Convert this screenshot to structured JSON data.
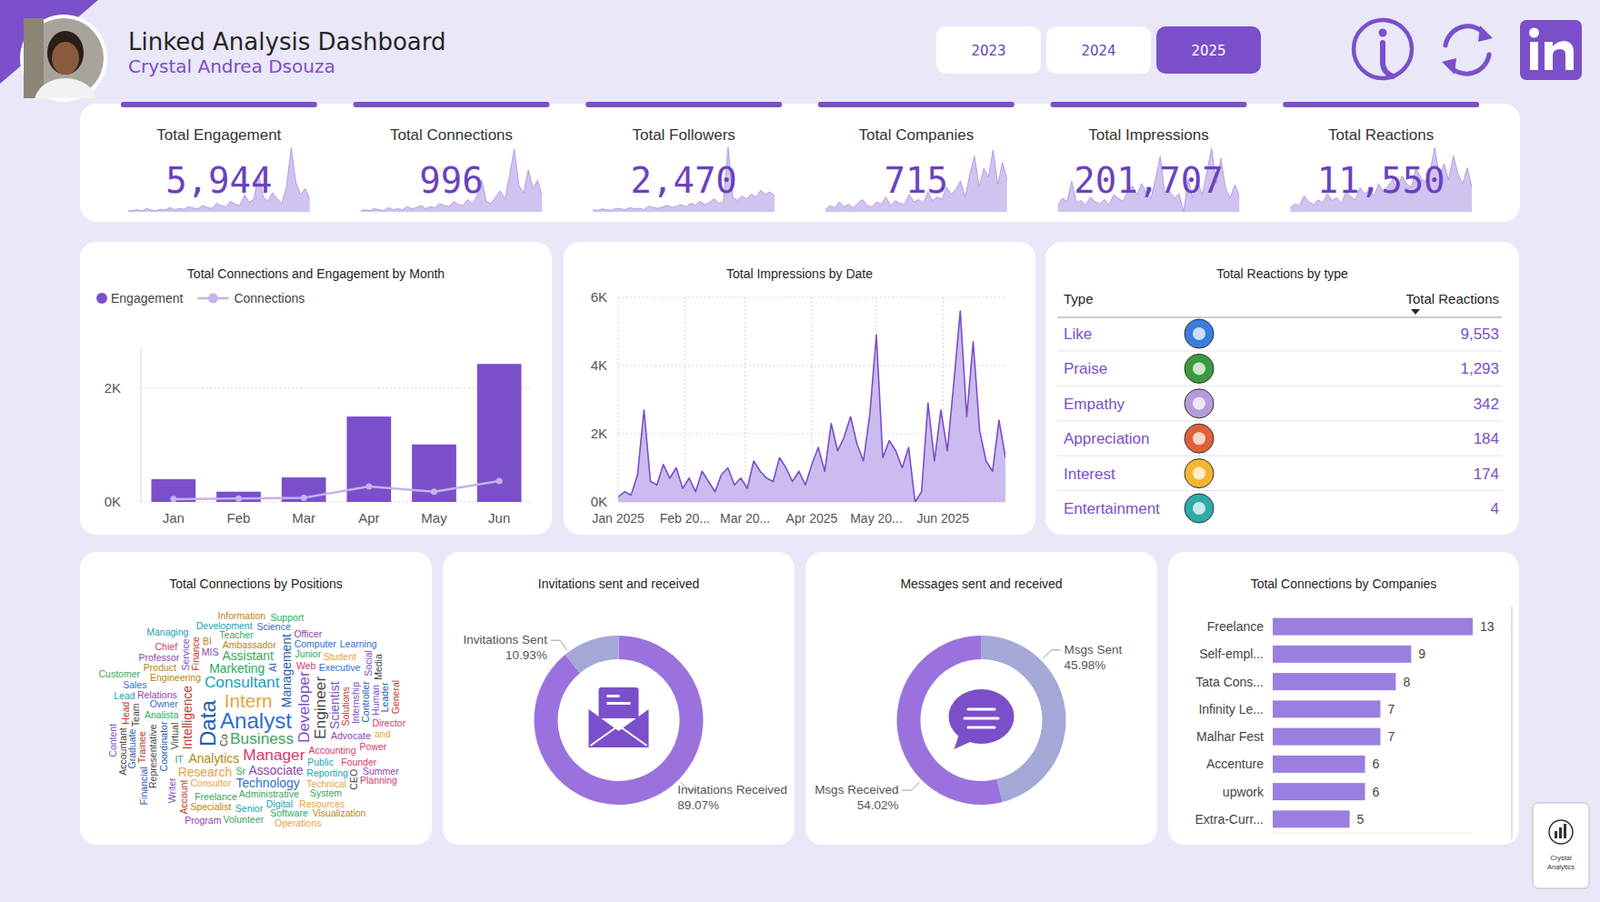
{
  "header": {
    "title": "Linked Analysis Dashboard",
    "subtitle": "Crystal Andrea Dsouza",
    "years": [
      {
        "label": "2023"
      },
      {
        "label": "2024"
      },
      {
        "label": "2025",
        "selected": true
      }
    ]
  },
  "kpis": [
    {
      "label": "Total Engagement",
      "value": "5,944",
      "sparkline": {
        "type": "area",
        "values": [
          2,
          3,
          5,
          2,
          8,
          4,
          3,
          6,
          4,
          10,
          5,
          8,
          6,
          12,
          9,
          7,
          15,
          10,
          8,
          20,
          14,
          12,
          25,
          18,
          15,
          40,
          22,
          30,
          90,
          35,
          25,
          45,
          30,
          20,
          60,
          150,
          70,
          40,
          55,
          30
        ],
        "ylim": [
          0,
          160
        ],
        "tick_labels": false,
        "color": "#C9B8EC"
      }
    },
    {
      "label": "Total Connections",
      "value": "996",
      "sparkline": {
        "type": "area",
        "values": [
          1,
          2,
          1,
          3,
          2,
          1,
          4,
          2,
          3,
          2,
          5,
          3,
          4,
          6,
          3,
          5,
          4,
          8,
          6,
          5,
          10,
          7,
          6,
          12,
          8,
          15,
          30,
          10,
          8,
          14,
          20,
          12,
          35,
          60,
          25,
          18,
          40,
          22,
          30,
          15
        ],
        "ylim": [
          0,
          65
        ],
        "tick_labels": false,
        "color": "#C9B8EC"
      }
    },
    {
      "label": "Total Followers",
      "value": "2,470",
      "sparkline": {
        "type": "area",
        "values": [
          3,
          2,
          4,
          3,
          2,
          5,
          4,
          3,
          6,
          4,
          5,
          3,
          8,
          6,
          5,
          7,
          9,
          6,
          8,
          10,
          7,
          12,
          9,
          15,
          10,
          13,
          18,
          12,
          14,
          90,
          20,
          16,
          22,
          18,
          25,
          20,
          30,
          24,
          28,
          22
        ],
        "ylim": [
          0,
          95
        ],
        "tick_labels": false,
        "color": "#C9B8EC"
      }
    },
    {
      "label": "Total Companies",
      "value": "715",
      "sparkline": {
        "type": "area",
        "values": [
          2,
          5,
          3,
          8,
          4,
          6,
          3,
          7,
          10,
          5,
          4,
          8,
          6,
          12,
          5,
          9,
          7,
          6,
          14,
          8,
          10,
          7,
          16,
          9,
          12,
          10,
          20,
          14,
          18,
          25,
          12,
          30,
          45,
          20,
          35,
          28,
          50,
          22,
          40,
          26
        ],
        "ylim": [
          0,
          55
        ],
        "tick_labels": false,
        "color": "#C9B8EC"
      }
    },
    {
      "label": "Total Impressions",
      "value": "201,707",
      "sparkline": {
        "type": "area",
        "values": [
          500,
          1200,
          900,
          2700,
          800,
          1000,
          600,
          1300,
          900,
          700,
          1100,
          600,
          1500,
          1200,
          900,
          1800,
          2300,
          1500,
          2500,
          1700,
          1200,
          2900,
          4900,
          1500,
          1800,
          1200,
          1600,
          0,
          2900,
          1200,
          2700,
          1500,
          3500,
          5600,
          2500,
          4700,
          2100,
          1200,
          2400,
          1300
        ],
        "ylim": [
          0,
          6000
        ],
        "tick_labels": false,
        "color": "#C9B8EC"
      }
    },
    {
      "label": "Total Reactions",
      "value": "11,550",
      "sparkline": {
        "type": "area",
        "values": [
          10,
          20,
          15,
          40,
          25,
          18,
          30,
          22,
          45,
          28,
          35,
          20,
          50,
          38,
          30,
          60,
          45,
          55,
          40,
          70,
          50,
          65,
          80,
          55,
          90,
          70,
          60,
          110,
          85,
          75,
          100,
          160,
          90,
          120,
          80,
          140,
          95,
          70,
          110,
          60
        ],
        "ylim": [
          0,
          170
        ],
        "tick_labels": false,
        "color": "#C9B8EC"
      }
    }
  ],
  "chart_data": [
    {
      "type": "bar",
      "title": "Total Connections and Engagement by Month",
      "categories": [
        "Jan",
        "Feb",
        "Mar",
        "Apr",
        "May",
        "Jun"
      ],
      "series": [
        {
          "name": "Engagement",
          "type": "bar",
          "color": "#7B4FC9",
          "values": [
            400,
            180,
            430,
            1500,
            1010,
            2424
          ]
        },
        {
          "name": "Connections",
          "type": "line",
          "color": "#C4B2EC",
          "marker": "circle",
          "values": [
            50,
            60,
            70,
            270,
            180,
            366
          ]
        }
      ],
      "ylim": [
        0,
        2700
      ],
      "yticks": [
        {
          "value": 0,
          "label": "0K"
        },
        {
          "value": 2000,
          "label": "2K"
        }
      ],
      "grid": true,
      "legend": "top-left"
    },
    {
      "type": "area",
      "title": "Total Impressions by Date",
      "color": "#7B4FC9",
      "x": [
        1,
        4,
        7,
        10,
        13,
        16,
        19,
        22,
        25,
        28,
        31,
        34,
        37,
        40,
        43,
        46,
        49,
        52,
        55,
        58,
        61,
        64,
        67,
        70,
        73,
        76,
        79,
        82,
        85,
        88,
        91,
        94,
        97,
        100,
        103,
        106,
        109,
        112,
        115,
        118,
        121,
        124,
        127,
        130,
        133,
        136,
        139,
        142,
        145,
        148,
        151,
        154,
        157,
        160,
        163,
        166,
        169,
        172,
        175,
        178,
        181
      ],
      "values": [
        150,
        300,
        200,
        800,
        2700,
        600,
        500,
        1100,
        700,
        1000,
        400,
        700,
        300,
        900,
        600,
        300,
        800,
        1000,
        500,
        700,
        400,
        1200,
        900,
        700,
        600,
        1300,
        1000,
        600,
        900,
        500,
        1100,
        1600,
        900,
        2300,
        1500,
        1900,
        2500,
        1700,
        1200,
        2600,
        4900,
        1300,
        1800,
        1500,
        1000,
        1600,
        0,
        300,
        2900,
        1200,
        2700,
        1500,
        3500,
        5600,
        2500,
        4700,
        2100,
        1200,
        900,
        2400,
        1300
      ],
      "xlim": [
        1,
        181
      ],
      "xticks": [
        {
          "value": 1,
          "label": "Jan 2025"
        },
        {
          "value": 32,
          "label": "Feb 20..."
        },
        {
          "value": 60,
          "label": "Mar 20..."
        },
        {
          "value": 91,
          "label": "Apr 2025"
        },
        {
          "value": 121,
          "label": "May 20..."
        },
        {
          "value": 152,
          "label": "Jun 2025"
        }
      ],
      "ylim": [
        0,
        6000
      ],
      "yticks": [
        {
          "value": 0,
          "label": "0K"
        },
        {
          "value": 2000,
          "label": "2K"
        },
        {
          "value": 4000,
          "label": "4K"
        },
        {
          "value": 6000,
          "label": "6K"
        }
      ],
      "grid": true
    },
    {
      "type": "wordcloud",
      "title": "Total Connections by Positions",
      "categories": [
        "Analyst",
        "Data",
        "Intern",
        "Business",
        "Developer",
        "Manager",
        "Consultant",
        "Engineer",
        "Analytics",
        "Associate",
        "Intelligence",
        "Marketing",
        "Technology",
        "Management",
        "Research",
        "Assistant",
        "Scientist",
        "Accounting",
        "Public",
        "Virtual",
        "Engineering",
        "Advocate",
        "Solutions",
        "Analista",
        "Owner",
        "Coordinator",
        "Consultor",
        "Administrative",
        "Internship",
        "Web",
        "Reporting",
        "Representative",
        "Ambassador",
        "Relations",
        "Finance",
        "Junior",
        "Executive",
        "Controller",
        "Technical",
        "Freelance",
        "Service",
        "Founder",
        "Digital",
        "Co",
        "Product",
        "MIS",
        "Trainee",
        "Teacher",
        "Computer",
        "AI",
        "Student",
        "System",
        "Human",
        "Power",
        "Senior",
        "Team",
        "Specialist",
        "Professor",
        "Account",
        "Sr",
        "Science",
        "Graduate",
        "Resources",
        "IT",
        "Writer",
        "Director",
        "Development",
        "CEO",
        "BI",
        "Officer",
        "Head",
        "Software",
        "Sales",
        "Leader",
        "and",
        "Volunteer",
        "Social",
        "Chief",
        "Lead",
        "Accountant",
        "Information",
        "Summer",
        "General",
        "Support",
        "Learning",
        "Financial",
        "Operations",
        "Customer",
        "Content",
        "Planning",
        "Managing",
        "Media",
        "Visualization",
        "Program"
      ],
      "values": [
        5,
        5,
        4,
        3,
        3,
        3,
        3,
        3,
        2,
        2,
        2,
        2,
        2,
        2,
        2,
        2,
        2,
        1,
        1,
        1,
        1,
        1,
        1,
        1,
        1,
        1,
        1,
        1,
        1,
        1,
        1,
        1,
        1,
        1,
        1,
        1,
        1,
        1,
        1,
        1,
        1,
        1,
        1,
        1,
        1,
        1,
        1,
        1,
        1,
        1,
        1,
        1,
        1,
        1,
        1,
        1,
        1,
        1,
        1,
        1,
        1,
        1,
        1,
        1,
        1,
        1,
        1,
        1,
        1,
        1,
        1,
        1,
        1,
        1,
        1,
        1,
        1,
        1,
        1,
        1,
        1,
        1,
        1,
        1,
        1,
        1,
        1,
        1,
        1,
        1,
        1,
        1,
        1,
        1
      ],
      "colors": [
        "#2F6FD1",
        "#1F5FAF",
        "#E8A33D",
        "#3BA55C",
        "#7B4FC9",
        "#D9396A",
        "#17A2B8",
        "#444444",
        "#B8860B",
        "#8E44AD",
        "#C0392B",
        "#27AE60",
        "#2F6FD1",
        "#1F5FAF",
        "#E8A33D",
        "#3BA55C",
        "#7B4FC9",
        "#D9396A",
        "#17A2B8",
        "#444444",
        "#B8860B",
        "#8E44AD",
        "#C0392B",
        "#27AE60",
        "#2F6FD1",
        "#1F5FAF",
        "#E8A33D",
        "#3BA55C",
        "#7B4FC9",
        "#D9396A",
        "#17A2B8",
        "#444444",
        "#B8860B",
        "#8E44AD",
        "#C0392B",
        "#27AE60",
        "#2F6FD1",
        "#1F5FAF",
        "#E8A33D",
        "#3BA55C",
        "#7B4FC9",
        "#D9396A",
        "#17A2B8",
        "#444444",
        "#B8860B",
        "#8E44AD",
        "#C0392B",
        "#27AE60",
        "#2F6FD1",
        "#1F5FAF",
        "#E8A33D",
        "#3BA55C",
        "#7B4FC9",
        "#D9396A",
        "#17A2B8",
        "#444444",
        "#B8860B",
        "#8E44AD",
        "#C0392B",
        "#27AE60",
        "#2F6FD1",
        "#1F5FAF",
        "#E8A33D",
        "#3BA55C",
        "#7B4FC9",
        "#D9396A",
        "#17A2B8",
        "#444444",
        "#B8860B",
        "#8E44AD",
        "#C0392B",
        "#27AE60",
        "#2F6FD1",
        "#1F5FAF",
        "#E8A33D",
        "#3BA55C",
        "#7B4FC9",
        "#D9396A",
        "#17A2B8",
        "#444444",
        "#B8860B",
        "#8E44AD",
        "#C0392B",
        "#27AE60",
        "#2F6FD1",
        "#1F5FAF",
        "#E8A33D",
        "#3BA55C",
        "#7B4FC9",
        "#D9396A",
        "#17A2B8",
        "#444444",
        "#B8860B",
        "#8E44AD"
      ]
    },
    {
      "type": "donut",
      "title": "Invitations sent and received",
      "categories": [
        "Invitations Received",
        "Invitations Sent"
      ],
      "values": [
        89.07,
        10.93
      ],
      "value_labels": [
        "89.07%",
        "10.93%"
      ],
      "colors": [
        "#9B72DD",
        "#A3A8D6"
      ],
      "data_labels": true
    },
    {
      "type": "donut",
      "title": "Messages sent and received",
      "categories": [
        "Msgs Sent",
        "Msgs Received"
      ],
      "values": [
        45.98,
        54.02
      ],
      "value_labels": [
        "45.98%",
        "54.02%"
      ],
      "colors": [
        "#A3A8D6",
        "#9B72DD"
      ],
      "data_labels": true
    },
    {
      "type": "bar",
      "orientation": "horizontal",
      "title": "Total Connections by Companies",
      "categories": [
        "Freelance",
        "Self-empl...",
        "Tata Cons...",
        "Infinity Le...",
        "Malhar Fest",
        "Accenture",
        "upwork",
        "Extra-Curr..."
      ],
      "values": [
        13,
        9,
        8,
        7,
        7,
        6,
        6,
        5
      ],
      "xlim": [
        0,
        13
      ],
      "tick_labels": "y",
      "data_labels": true,
      "color": "#9B7FE0"
    }
  ],
  "reactions_table": {
    "title": "Total Reactions by type",
    "columns": [
      "Type",
      "Total Reactions"
    ],
    "rows": [
      [
        "Like",
        "9,553"
      ],
      [
        "Praise",
        "1,293"
      ],
      [
        "Empathy",
        "342"
      ],
      [
        "Appreciation",
        "184"
      ],
      [
        "Interest",
        "174"
      ],
      [
        "Entertainment",
        "4"
      ]
    ]
  },
  "badge": [
    "Crystal",
    "Analytics"
  ]
}
